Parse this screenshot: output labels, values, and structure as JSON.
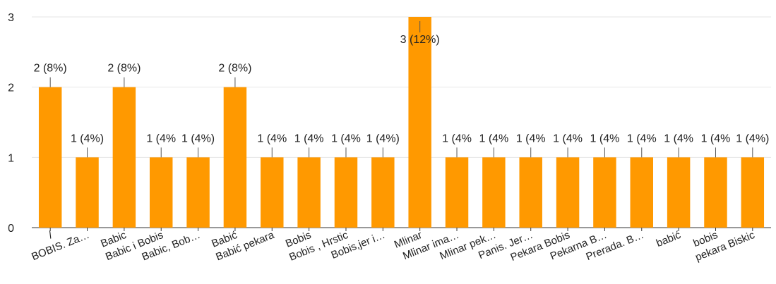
{
  "chart_data": {
    "type": "bar",
    "categories": [
      "/",
      "BOBIS. Za…",
      "Babic",
      "Babic i Bobis",
      "Babic, Bob…",
      "Babić",
      "Babić pekara",
      "Bobis",
      "Bobis , Hrstic",
      "Bobis,jer i…",
      "Mlinar",
      "Mlinar ima…",
      "Mlinar pek…",
      "Panis. Jer…",
      "Pekara Bobis",
      "Pekarna B…",
      "Prerada. B…",
      "babić",
      "bobis",
      "pekara Biskic"
    ],
    "values": [
      2,
      1,
      2,
      1,
      1,
      2,
      1,
      1,
      1,
      1,
      3,
      1,
      1,
      1,
      1,
      1,
      1,
      1,
      1,
      1
    ],
    "data_labels": [
      "2 (8%)",
      "1 (4%)",
      "2 (8%)",
      "1 (4%",
      "1 (4%)",
      "2 (8%)",
      "1 (4%",
      "1 (4%",
      "1 (4%",
      "1 (4%)",
      "3 (12%)",
      "1 (4%",
      "1 (4%",
      "1 (4%",
      "1 (4%",
      "1 (4%",
      "1 (4%",
      "1 (4%",
      "1 (4%",
      "1 (4%)"
    ],
    "y_ticks": [
      "0",
      "1",
      "2",
      "3"
    ],
    "ylim": [
      0,
      3
    ],
    "grid": true,
    "bar_color": "#ff9900",
    "title": "",
    "xlabel": "",
    "ylabel": ""
  }
}
